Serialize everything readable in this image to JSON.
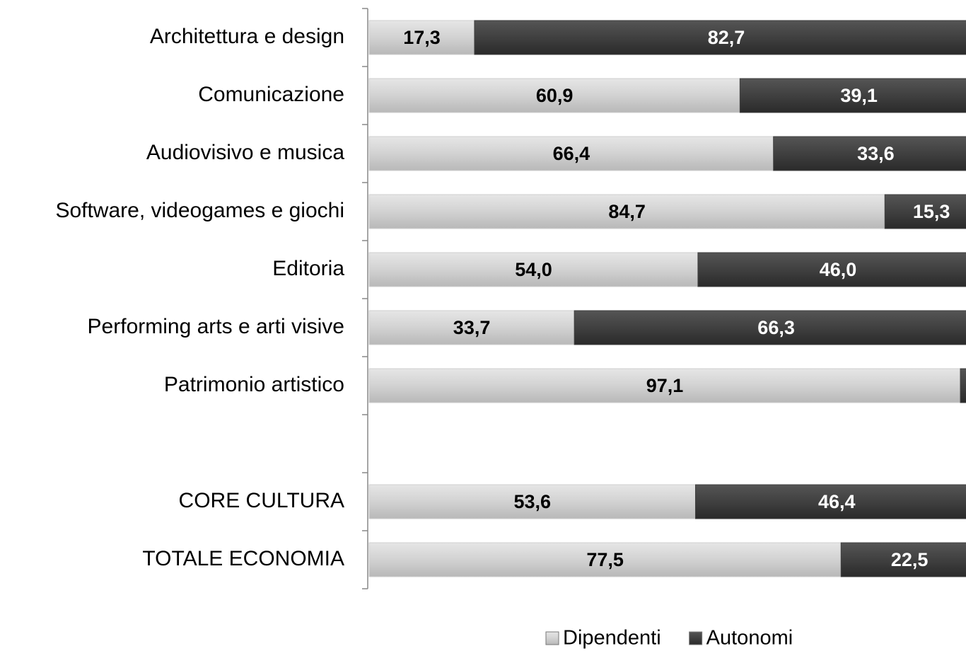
{
  "chart_data": {
    "type": "stacked_barh",
    "categories": [
      "Architettura e design",
      "Comunicazione",
      "Audiovisivo e musica",
      "Software, videogames e giochi",
      "Editoria",
      "Performing arts e arti visive",
      "Patrimonio artistico",
      null,
      "CORE CULTURA",
      "TOTALE ECONOMIA"
    ],
    "series": [
      {
        "name": "Dipendenti",
        "color": "#cfcfcf",
        "label_color": "#000000",
        "values": [
          17.3,
          60.9,
          66.4,
          84.7,
          54.0,
          33.7,
          97.1,
          null,
          53.6,
          77.5
        ],
        "value_labels": [
          "17,3",
          "60,9",
          "66,4",
          "84,7",
          "54,0",
          "33,7",
          "97,1",
          null,
          "53,6",
          "77,5"
        ]
      },
      {
        "name": "Autonomi",
        "color": "#404040",
        "label_color": "#ffffff",
        "values": [
          82.7,
          39.1,
          33.6,
          15.3,
          46.0,
          66.3,
          2.9,
          null,
          46.4,
          22.5
        ],
        "value_labels": [
          "82,7",
          "39,1",
          "33,6",
          "15,3",
          "46,0",
          "66,3",
          null,
          null,
          "46,4",
          "22,5"
        ]
      }
    ],
    "xlim": [
      0,
      100
    ],
    "legend": "bottom"
  }
}
